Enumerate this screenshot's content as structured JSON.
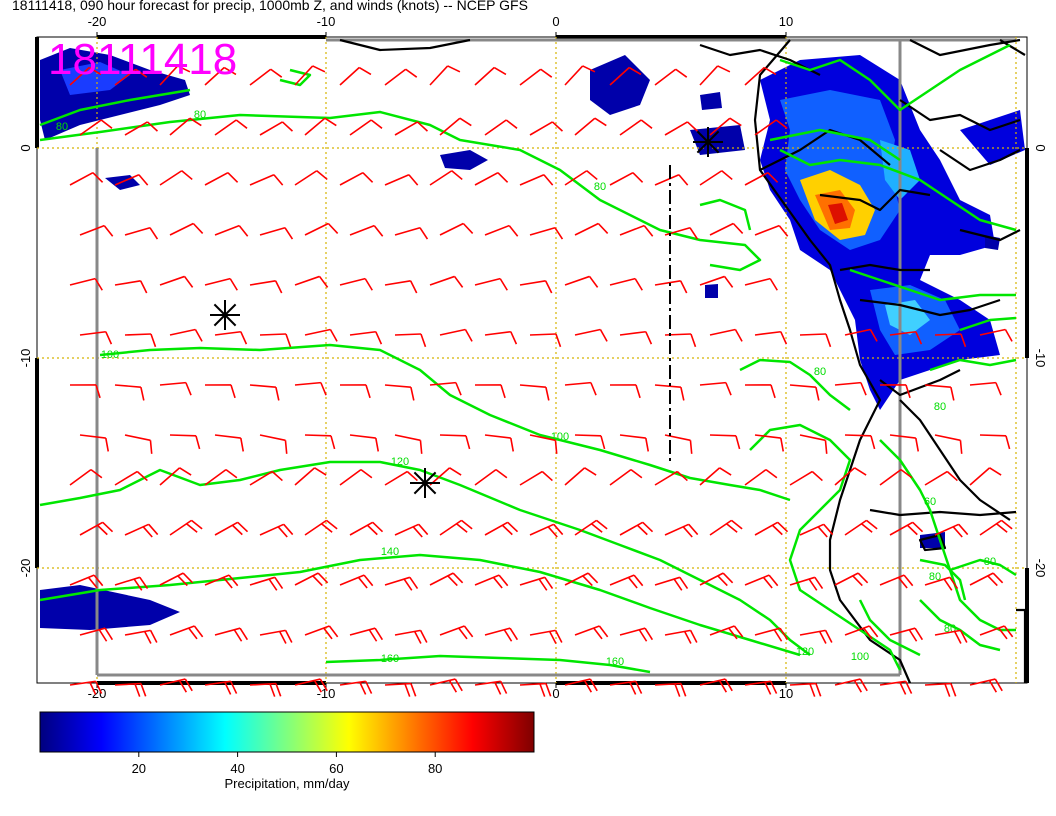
{
  "title": "18111418, 090 hour forecast for precip, 1000mb Z, and winds (knots) -- NCEP GFS",
  "stamp": "18111418",
  "colors": {
    "contour": "#00e600",
    "barb": "#ff0000",
    "coast": "#000000",
    "grid": "#d6b400",
    "border": "#888888"
  },
  "axes": {
    "lon_ticks_top": [
      "-20",
      "-10",
      "0",
      "10"
    ],
    "lon_ticks_bottom": [
      "-20",
      "-10",
      "0",
      "10"
    ],
    "lat_ticks_left": [
      "0",
      "-10",
      "-20"
    ],
    "lat_ticks_right": [
      "0",
      "-10",
      "-20"
    ],
    "lon_range": [
      -22.5,
      20
    ],
    "lat_range": [
      -25,
      5
    ]
  },
  "contour_labels": [
    "80",
    "80",
    "80",
    "100",
    "100",
    "120",
    "140",
    "160",
    "160",
    "120",
    "100",
    "80",
    "80",
    "60",
    "80",
    "80",
    "80"
  ],
  "colorbar": {
    "title": "Precipitation, mm/day",
    "ticks": [
      "20",
      "40",
      "60",
      "80"
    ],
    "range": [
      0,
      100
    ],
    "colors": [
      "#00007f",
      "#0000ff",
      "#007fff",
      "#00ffff",
      "#7fff7f",
      "#ffff00",
      "#ff7f00",
      "#ff0000",
      "#7f0000"
    ]
  }
}
